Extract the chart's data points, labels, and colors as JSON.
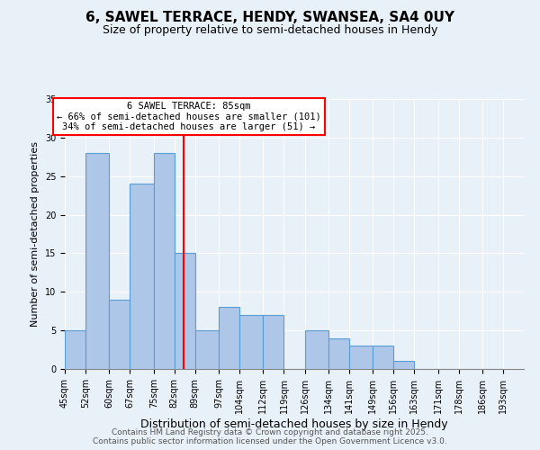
{
  "title": "6, SAWEL TERRACE, HENDY, SWANSEA, SA4 0UY",
  "subtitle": "Size of property relative to semi-detached houses in Hendy",
  "xlabel": "Distribution of semi-detached houses by size in Hendy",
  "ylabel": "Number of semi-detached properties",
  "bins": [
    45,
    52,
    60,
    67,
    75,
    82,
    89,
    97,
    104,
    112,
    119,
    126,
    134,
    141,
    149,
    156,
    163,
    171,
    178,
    186,
    193
  ],
  "counts": [
    5,
    28,
    9,
    24,
    28,
    15,
    5,
    8,
    7,
    7,
    0,
    5,
    4,
    3,
    3,
    1,
    0,
    0,
    0,
    0
  ],
  "bar_color": "#aec6e8",
  "bar_edgecolor": "#5a9fd4",
  "vline_x": 85,
  "vline_color": "red",
  "ylim": [
    0,
    35
  ],
  "yticks": [
    0,
    5,
    10,
    15,
    20,
    25,
    30,
    35
  ],
  "annotation_title": "6 SAWEL TERRACE: 85sqm",
  "annotation_line1": "← 66% of semi-detached houses are smaller (101)",
  "annotation_line2": "34% of semi-detached houses are larger (51) →",
  "annotation_box_color": "white",
  "annotation_box_edgecolor": "red",
  "background_color": "#e8f0f8",
  "footer_line1": "Contains HM Land Registry data © Crown copyright and database right 2025.",
  "footer_line2": "Contains public sector information licensed under the Open Government Licence v3.0.",
  "title_fontsize": 11,
  "subtitle_fontsize": 9,
  "xlabel_fontsize": 9,
  "ylabel_fontsize": 8,
  "tick_fontsize": 7,
  "footer_fontsize": 6.5
}
